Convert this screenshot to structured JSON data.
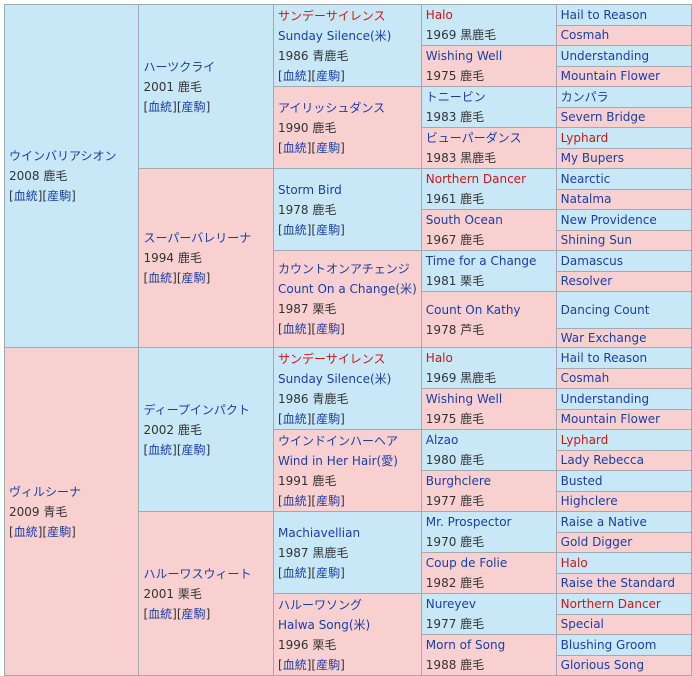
{
  "links": {
    "blood": "血統",
    "farm": "産駒"
  },
  "g1": [
    {
      "name": "ウインバリアシオン",
      "year": "2008 鹿毛"
    },
    {
      "name": "ヴィルシーナ",
      "year": "2009 青毛"
    }
  ],
  "g2": [
    {
      "name": "ハーツクライ",
      "year": "2001 鹿毛"
    },
    {
      "name": "スーパーバレリーナ",
      "year": "1994 鹿毛"
    },
    {
      "name": "ディープインパクト",
      "year": "2002 鹿毛"
    },
    {
      "name": "ハルーワスウィート",
      "year": "2001 栗毛"
    }
  ],
  "g3": [
    {
      "name": "サンデーサイレンス",
      "en": "Sunday Silence(米)",
      "year": "1986 青鹿毛"
    },
    {
      "name": "アイリッシュダンス",
      "year": "1990 鹿毛"
    },
    {
      "name": "Storm Bird",
      "year": "1978 鹿毛"
    },
    {
      "name": "カウントオンアチェンジ",
      "en": "Count On a Change(米)",
      "year": "1987 栗毛"
    },
    {
      "name": "サンデーサイレンス",
      "en": "Sunday Silence(米)",
      "year": "1986 青鹿毛"
    },
    {
      "name": "ウインドインハーヘア",
      "en": "Wind in Her Hair(愛)",
      "year": "1991 鹿毛"
    },
    {
      "name": "Machiavellian",
      "year": "1987 黒鹿毛"
    },
    {
      "name": "ハルーワソング",
      "en": "Halwa Song(米)",
      "year": "1996 栗毛"
    }
  ],
  "g4": [
    {
      "name": "Halo",
      "year": "1969 黒鹿毛"
    },
    {
      "name": "Wishing Well",
      "year": "1975 鹿毛"
    },
    {
      "name": "トニービン",
      "year": "1983 鹿毛"
    },
    {
      "name": "ビューパーダンス",
      "year": "1983 黒鹿毛"
    },
    {
      "name": "Northern Dancer",
      "year": "1961 鹿毛"
    },
    {
      "name": "South Ocean",
      "year": "1967 鹿毛"
    },
    {
      "name": "Time for a Change",
      "year": "1981 栗毛"
    },
    {
      "name": "Count On Kathy",
      "year": "1978 芦毛"
    },
    {
      "name": "Halo",
      "year": "1969 黒鹿毛"
    },
    {
      "name": "Wishing Well",
      "year": "1975 鹿毛"
    },
    {
      "name": "Alzao",
      "year": "1980 鹿毛"
    },
    {
      "name": "Burghclere",
      "year": "1977 鹿毛"
    },
    {
      "name": "Mr. Prospector",
      "year": "1970 鹿毛"
    },
    {
      "name": "Coup de Folie",
      "year": "1982 鹿毛"
    },
    {
      "name": "Nureyev",
      "year": "1977 鹿毛"
    },
    {
      "name": "Morn of Song",
      "year": "1988 鹿毛"
    }
  ],
  "g5": [
    "Hail to Reason",
    "Cosmah",
    "Understanding",
    "Mountain Flower",
    "カンパラ",
    "Severn Bridge",
    "Lyphard",
    "My Bupers",
    "Nearctic",
    "Natalma",
    "New Providence",
    "Shining Sun",
    "Damascus",
    "Resolver",
    "Dancing Count",
    "War Exchange",
    "Hail to Reason",
    "Cosmah",
    "Understanding",
    "Mountain Flower",
    "Lyphard",
    "Lady Rebecca",
    "Busted",
    "Highclere",
    "Raise a Native",
    "Gold Digger",
    "Halo",
    "Raise the Standard",
    "Northern Dancer",
    "Special",
    "Blushing Groom",
    "Glorious Song"
  ]
}
